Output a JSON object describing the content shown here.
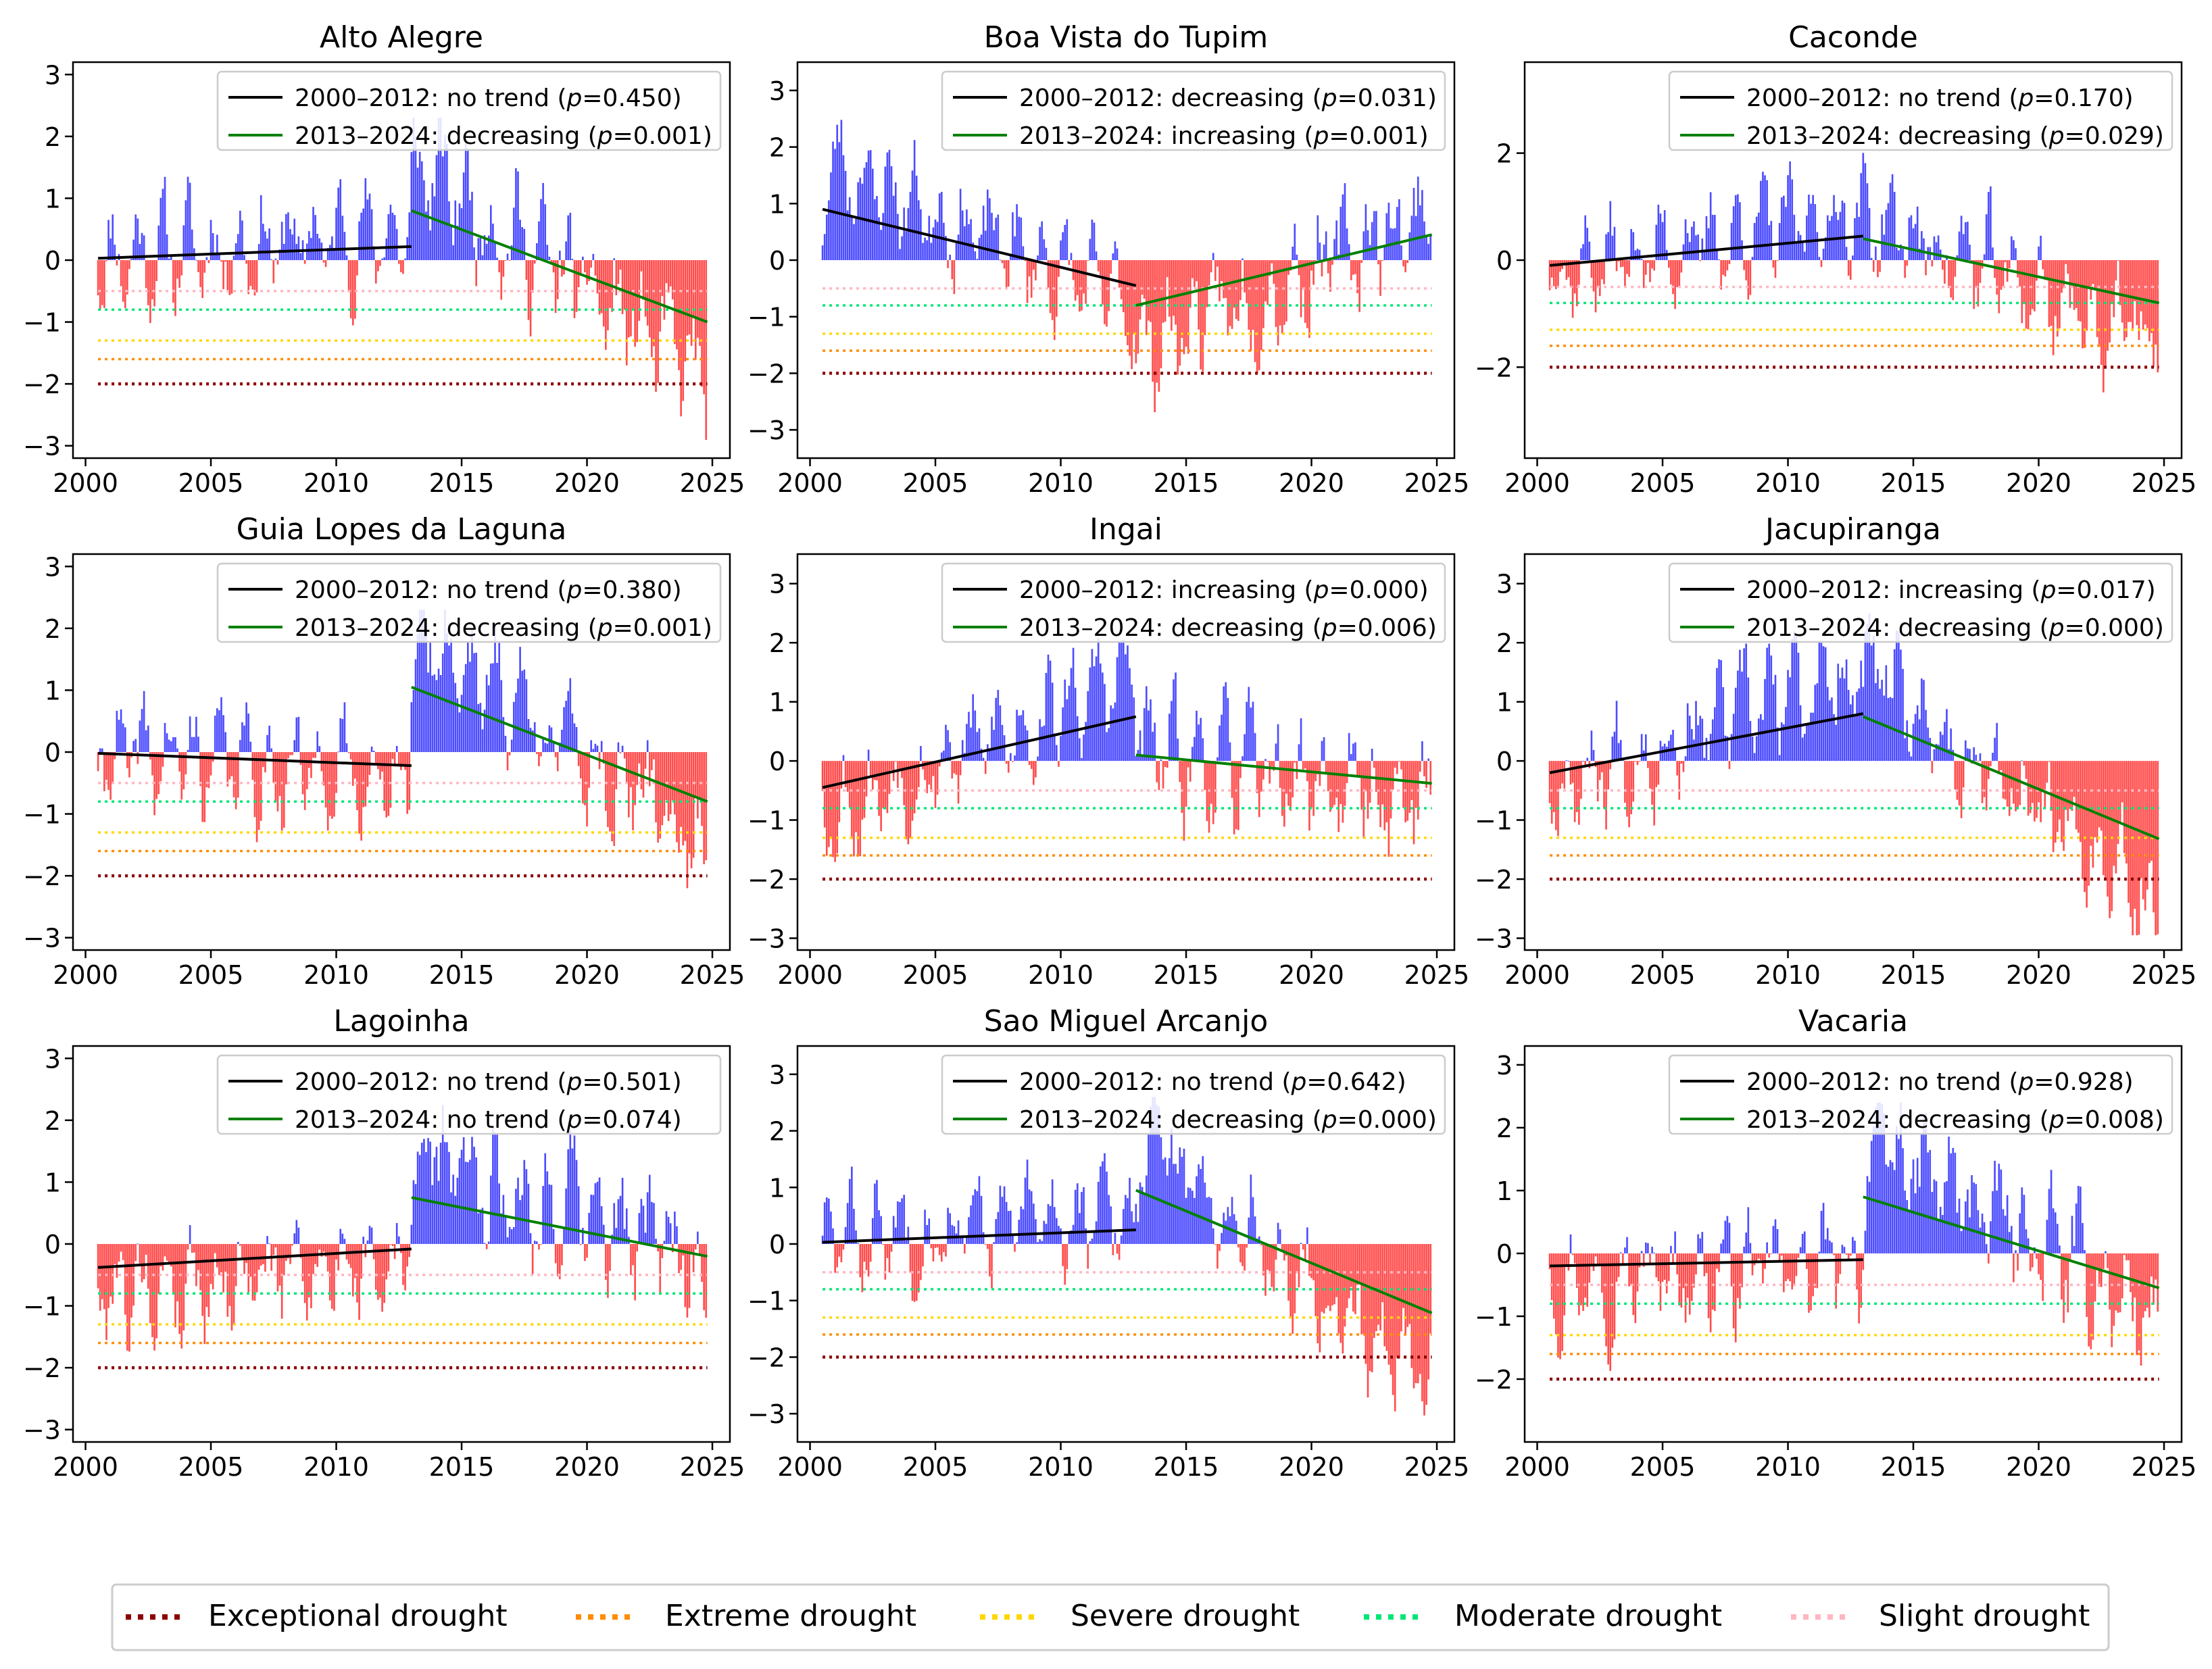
{
  "colors": {
    "positive": "#0000ff",
    "negative": "#ff0000",
    "trend1": "#000000",
    "trend2": "#008000",
    "exceptional": "#8b0000",
    "extreme": "#ff8c00",
    "severe": "#ffd700",
    "moderate": "#00e676",
    "slight": "#ffb6c1"
  },
  "legend": {
    "exceptional": "Exceptional drought",
    "extreme": "Extreme drought",
    "severe": "Severe drought",
    "moderate": "Moderate drought",
    "slight": "Slight drought"
  },
  "chart_data": [
    {
      "type": "bar",
      "title": "Alto Alegre",
      "xlim": [
        1999.5,
        2025.7
      ],
      "ylim": [
        -3.2,
        3.2
      ],
      "yticks": [
        -3,
        -2,
        -1,
        0,
        1,
        2,
        3
      ],
      "xticks": [
        2000,
        2005,
        2010,
        2015,
        2020,
        2025
      ],
      "legend_entries": [
        {
          "period": "2000–2012",
          "text": "no trend",
          "p": "0.450"
        },
        {
          "period": "2013–2024",
          "text": "decreasing",
          "p": "0.001"
        }
      ],
      "trend1": {
        "x": [
          2000.5,
          2013
        ],
        "y": [
          0.03,
          0.22
        ]
      },
      "trend2": {
        "x": [
          2013,
          2024.8
        ],
        "y": [
          0.8,
          -1.0
        ]
      },
      "thresholds": {
        "exceptional": -2.0,
        "extreme": -1.6,
        "severe": -1.3,
        "moderate": -0.8,
        "slight": -0.5
      },
      "seed": 11,
      "amp1": 1.05,
      "amp2": 1.25
    },
    {
      "type": "bar",
      "title": "Boa Vista do Tupim",
      "xlim": [
        1999.5,
        2025.7
      ],
      "ylim": [
        -3.5,
        3.5
      ],
      "yticks": [
        -3,
        -2,
        -1,
        0,
        1,
        2,
        3
      ],
      "xticks": [
        2000,
        2005,
        2010,
        2015,
        2020,
        2025
      ],
      "legend_entries": [
        {
          "period": "2000–2012",
          "text": "decreasing",
          "p": "0.031"
        },
        {
          "period": "2013–2024",
          "text": "increasing",
          "p": "0.001"
        }
      ],
      "trend1": {
        "x": [
          2000.5,
          2013
        ],
        "y": [
          0.9,
          -0.45
        ]
      },
      "trend2": {
        "x": [
          2013,
          2024.8
        ],
        "y": [
          -0.8,
          0.45
        ]
      },
      "thresholds": {
        "exceptional": -2.0,
        "extreme": -1.6,
        "severe": -1.3,
        "moderate": -0.8,
        "slight": -0.5
      },
      "seed": 23,
      "amp1": 1.1,
      "amp2": 1.3
    },
    {
      "type": "bar",
      "title": "Caconde",
      "xlim": [
        1999.5,
        2025.7
      ],
      "ylim": [
        -3.7,
        3.7
      ],
      "yticks": [
        -2,
        0,
        2
      ],
      "xticks": [
        2000,
        2005,
        2010,
        2015,
        2020,
        2025
      ],
      "legend_entries": [
        {
          "period": "2000–2012",
          "text": "no trend",
          "p": "0.170"
        },
        {
          "period": "2013–2024",
          "text": "decreasing",
          "p": "0.029"
        }
      ],
      "trend1": {
        "x": [
          2000.5,
          2013
        ],
        "y": [
          -0.1,
          0.45
        ]
      },
      "trend2": {
        "x": [
          2013,
          2024.8
        ],
        "y": [
          0.4,
          -0.8
        ]
      },
      "thresholds": {
        "exceptional": -2.0,
        "extreme": -1.6,
        "severe": -1.3,
        "moderate": -0.8,
        "slight": -0.5
      },
      "seed": 37,
      "amp1": 1.1,
      "amp2": 1.3
    },
    {
      "type": "bar",
      "title": "Guia Lopes da Laguna",
      "xlim": [
        1999.5,
        2025.7
      ],
      "ylim": [
        -3.2,
        3.2
      ],
      "yticks": [
        -3,
        -2,
        -1,
        0,
        1,
        2,
        3
      ],
      "xticks": [
        2000,
        2005,
        2010,
        2015,
        2020,
        2025
      ],
      "legend_entries": [
        {
          "period": "2000–2012",
          "text": "no trend",
          "p": "0.380"
        },
        {
          "period": "2013–2024",
          "text": "decreasing",
          "p": "0.001"
        }
      ],
      "trend1": {
        "x": [
          2000.5,
          2013
        ],
        "y": [
          -0.02,
          -0.22
        ]
      },
      "trend2": {
        "x": [
          2013,
          2024.8
        ],
        "y": [
          1.05,
          -0.8
        ]
      },
      "thresholds": {
        "exceptional": -2.0,
        "extreme": -1.6,
        "severe": -1.3,
        "moderate": -0.8,
        "slight": -0.5
      },
      "seed": 41,
      "amp1": 1.05,
      "amp2": 1.25
    },
    {
      "type": "bar",
      "title": "Ingai",
      "xlim": [
        1999.5,
        2025.7
      ],
      "ylim": [
        -3.2,
        3.5
      ],
      "yticks": [
        -3,
        -2,
        -1,
        0,
        1,
        2,
        3
      ],
      "xticks": [
        2000,
        2005,
        2010,
        2015,
        2020,
        2025
      ],
      "legend_entries": [
        {
          "period": "2000–2012",
          "text": "increasing",
          "p": "0.000"
        },
        {
          "period": "2013–2024",
          "text": "decreasing",
          "p": "0.006"
        }
      ],
      "trend1": {
        "x": [
          2000.5,
          2013
        ],
        "y": [
          -0.45,
          0.75
        ]
      },
      "trend2": {
        "x": [
          2013,
          2024.8
        ],
        "y": [
          0.1,
          -0.38
        ]
      },
      "thresholds": {
        "exceptional": -2.0,
        "extreme": -1.6,
        "severe": -1.3,
        "moderate": -0.8,
        "slight": -0.5
      },
      "seed": 53,
      "amp1": 1.1,
      "amp2": 1.25
    },
    {
      "type": "bar",
      "title": "Jacupiranga",
      "xlim": [
        1999.5,
        2025.7
      ],
      "ylim": [
        -3.2,
        3.5
      ],
      "yticks": [
        -3,
        -2,
        -1,
        0,
        1,
        2,
        3
      ],
      "xticks": [
        2000,
        2005,
        2010,
        2015,
        2020,
        2025
      ],
      "legend_entries": [
        {
          "period": "2000–2012",
          "text": "increasing",
          "p": "0.017"
        },
        {
          "period": "2013–2024",
          "text": "decreasing",
          "p": "0.000"
        }
      ],
      "trend1": {
        "x": [
          2000.5,
          2013
        ],
        "y": [
          -0.2,
          0.8
        ]
      },
      "trend2": {
        "x": [
          2013,
          2024.8
        ],
        "y": [
          0.75,
          -1.32
        ]
      },
      "thresholds": {
        "exceptional": -2.0,
        "extreme": -1.6,
        "severe": -1.3,
        "moderate": -0.8,
        "slight": -0.5
      },
      "seed": 67,
      "amp1": 1.1,
      "amp2": 1.25
    },
    {
      "type": "bar",
      "title": "Lagoinha",
      "xlim": [
        1999.5,
        2025.7
      ],
      "ylim": [
        -3.2,
        3.2
      ],
      "yticks": [
        -3,
        -2,
        -1,
        0,
        1,
        2,
        3
      ],
      "xticks": [
        2000,
        2005,
        2010,
        2015,
        2020,
        2025
      ],
      "legend_entries": [
        {
          "period": "2000–2012",
          "text": "no trend",
          "p": "0.501"
        },
        {
          "period": "2013–2024",
          "text": "no trend",
          "p": "0.074"
        }
      ],
      "trend1": {
        "x": [
          2000.5,
          2013
        ],
        "y": [
          -0.38,
          -0.08
        ]
      },
      "trend2": {
        "x": [
          2013,
          2024.8
        ],
        "y": [
          0.75,
          -0.2
        ]
      },
      "thresholds": {
        "exceptional": -2.0,
        "extreme": -1.6,
        "severe": -1.3,
        "moderate": -0.8,
        "slight": -0.5
      },
      "seed": 79,
      "amp1": 1.05,
      "amp2": 1.3
    },
    {
      "type": "bar",
      "title": "Sao Miguel Arcanjo",
      "xlim": [
        1999.5,
        2025.7
      ],
      "ylim": [
        -3.5,
        3.5
      ],
      "yticks": [
        -3,
        -2,
        -1,
        0,
        1,
        2,
        3
      ],
      "xticks": [
        2000,
        2005,
        2010,
        2015,
        2020,
        2025
      ],
      "legend_entries": [
        {
          "period": "2000–2012",
          "text": "no trend",
          "p": "0.642"
        },
        {
          "period": "2013–2024",
          "text": "decreasing",
          "p": "0.000"
        }
      ],
      "trend1": {
        "x": [
          2000.5,
          2013
        ],
        "y": [
          0.03,
          0.25
        ]
      },
      "trend2": {
        "x": [
          2013,
          2024.8
        ],
        "y": [
          0.95,
          -1.22
        ]
      },
      "thresholds": {
        "exceptional": -2.0,
        "extreme": -1.6,
        "severe": -1.3,
        "moderate": -0.8,
        "slight": -0.5
      },
      "seed": 83,
      "amp1": 1.05,
      "amp2": 1.25
    },
    {
      "type": "bar",
      "title": "Vacaria",
      "xlim": [
        1999.5,
        2025.7
      ],
      "ylim": [
        -3.0,
        3.3
      ],
      "yticks": [
        -2,
        -1,
        0,
        1,
        2,
        3
      ],
      "xticks": [
        2000,
        2005,
        2010,
        2015,
        2020,
        2025
      ],
      "legend_entries": [
        {
          "period": "2000–2012",
          "text": "no trend",
          "p": "0.928"
        },
        {
          "period": "2013–2024",
          "text": "decreasing",
          "p": "0.008"
        }
      ],
      "trend1": {
        "x": [
          2000.5,
          2013
        ],
        "y": [
          -0.2,
          -0.1
        ]
      },
      "trend2": {
        "x": [
          2013,
          2024.8
        ],
        "y": [
          0.9,
          -0.55
        ]
      },
      "thresholds": {
        "exceptional": -2.0,
        "extreme": -1.6,
        "severe": -1.3,
        "moderate": -0.8,
        "slight": -0.5
      },
      "seed": 97,
      "amp1": 1.0,
      "amp2": 1.25
    }
  ]
}
